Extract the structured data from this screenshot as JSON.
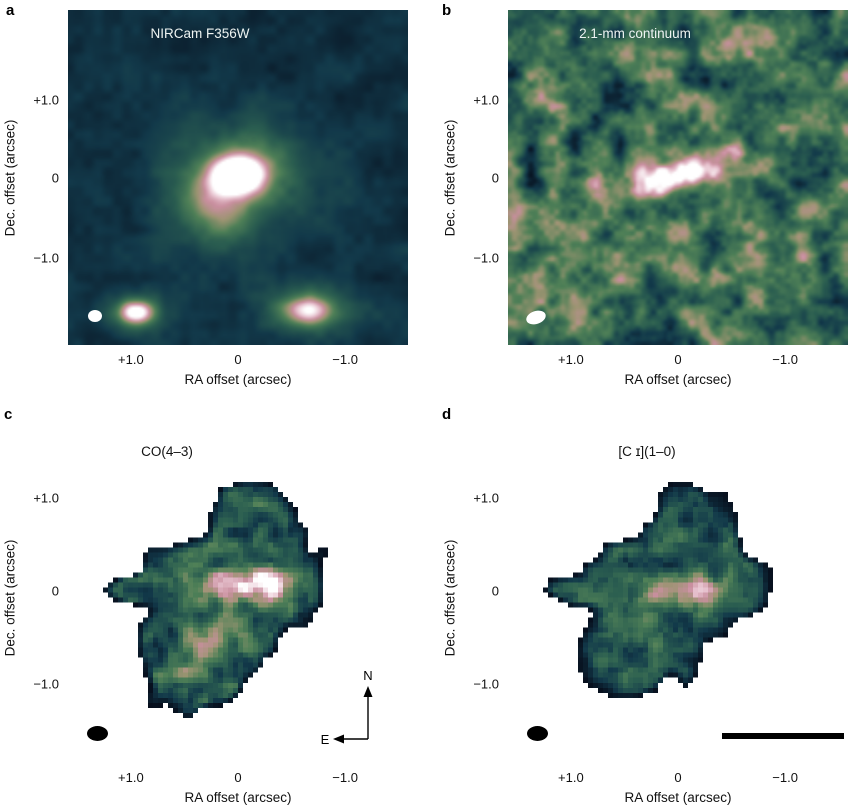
{
  "panels": {
    "a": {
      "label": "a",
      "title": "NIRCam F356W"
    },
    "b": {
      "label": "b",
      "title": "2.1-mm continuum"
    },
    "c": {
      "label": "c",
      "title": "CO(4–3)"
    },
    "d": {
      "label": "d",
      "title": "[C ɪ](1–0)"
    }
  },
  "axes": {
    "x_label": "RA offset (arcsec)",
    "y_label": "Dec. offset (arcsec)",
    "x_ticks": [
      "+1.0",
      "0",
      "−1.0"
    ],
    "y_ticks": [
      "+1.0",
      "0",
      "−1.0"
    ]
  },
  "compass": {
    "north": "N",
    "east": "E"
  },
  "colors": {
    "page_background": "#ffffff",
    "colormap": [
      "#070f1d",
      "#12394a",
      "#2b5e50",
      "#4f8057",
      "#9c9472",
      "#c98f9f",
      "#e7c3cf",
      "#ffffff"
    ],
    "beam_light": "#ffffff",
    "beam_dark": "#000000",
    "annotation": "#000000"
  }
}
